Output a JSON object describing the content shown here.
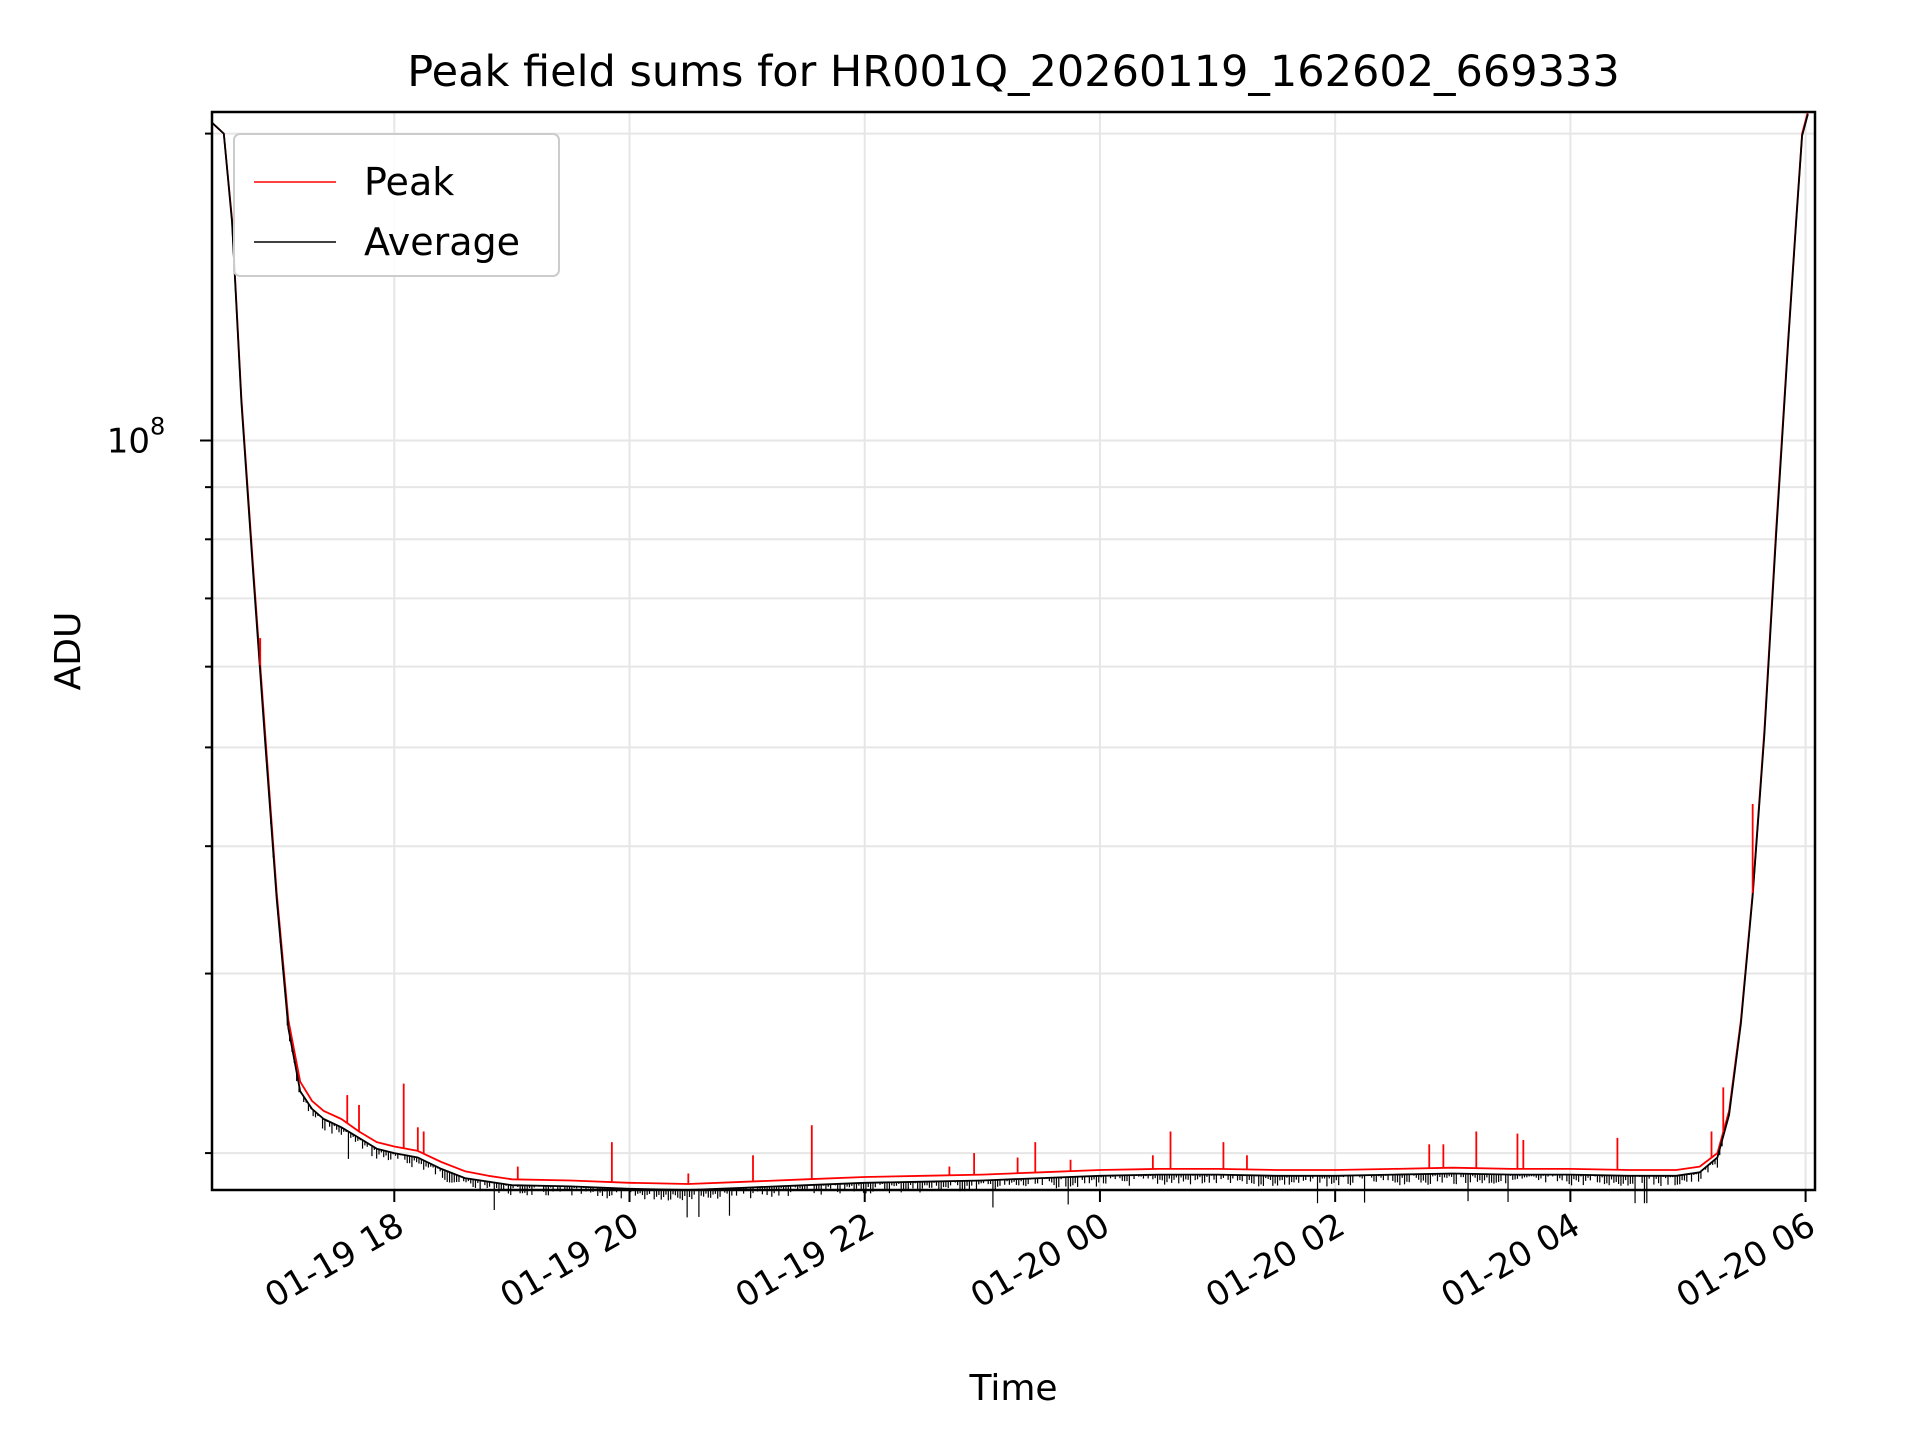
{
  "chart_data": {
    "type": "line",
    "title": "Peak field sums for HR001Q_20260119_162602_669333",
    "xlabel": "Time",
    "ylabel": "ADU",
    "yscale": "log",
    "grid": true,
    "legend_location": "upper-left",
    "colors": {
      "Peak": "#ff0000",
      "Average": "#000000"
    },
    "x_unit": "hours since 2026-01-19 00:00",
    "xlim": [
      16.45,
      30.08
    ],
    "ylim": [
      18400000,
      210000000
    ],
    "x_ticks": [
      {
        "value": 18,
        "label": "01-19 18"
      },
      {
        "value": 20,
        "label": "01-19 20"
      },
      {
        "value": 22,
        "label": "01-19 22"
      },
      {
        "value": 24,
        "label": "01-20 00"
      },
      {
        "value": 26,
        "label": "01-20 02"
      },
      {
        "value": 28,
        "label": "01-20 04"
      },
      {
        "value": 30,
        "label": "01-20 06"
      }
    ],
    "y_major_ticks": [
      {
        "value": 100000000,
        "base": "10",
        "exp": "8"
      }
    ],
    "y_minor_ticks": [
      20000000,
      30000000,
      40000000,
      50000000,
      60000000,
      70000000,
      80000000,
      90000000,
      200000000
    ],
    "series": [
      {
        "name": "Peak",
        "x": [
          16.45,
          16.55,
          16.62,
          16.7,
          16.8,
          16.9,
          17.0,
          17.1,
          17.2,
          17.3,
          17.4,
          17.55,
          17.7,
          17.85,
          18.0,
          18.2,
          18.4,
          18.6,
          18.8,
          19.0,
          19.5,
          20.0,
          20.5,
          21.0,
          21.5,
          22.0,
          22.5,
          23.0,
          23.5,
          24.0,
          24.5,
          25.0,
          25.5,
          26.0,
          26.5,
          27.0,
          27.5,
          28.0,
          28.5,
          28.9,
          29.1,
          29.25,
          29.35,
          29.45,
          29.55,
          29.65,
          29.75,
          29.85,
          29.92,
          29.97,
          30.02
        ],
        "values": [
          205000000,
          200000000,
          165000000,
          110000000,
          75000000,
          52000000,
          36000000,
          27000000,
          23500000,
          22500000,
          22000000,
          21600000,
          21000000,
          20500000,
          20300000,
          20100000,
          19600000,
          19200000,
          19000000,
          18850000,
          18800000,
          18700000,
          18650000,
          18750000,
          18850000,
          18950000,
          19000000,
          19050000,
          19150000,
          19250000,
          19300000,
          19300000,
          19250000,
          19250000,
          19300000,
          19350000,
          19300000,
          19300000,
          19250000,
          19250000,
          19400000,
          20000000,
          22000000,
          27000000,
          36000000,
          52000000,
          82000000,
          125000000,
          165000000,
          200000000,
          210000000
        ]
      },
      {
        "name": "Average",
        "x": [
          16.45,
          16.55,
          16.62,
          16.7,
          16.8,
          16.9,
          17.0,
          17.1,
          17.2,
          17.3,
          17.4,
          17.55,
          17.7,
          17.85,
          18.0,
          18.2,
          18.4,
          18.6,
          18.8,
          19.0,
          19.5,
          20.0,
          20.5,
          21.0,
          21.5,
          22.0,
          22.5,
          23.0,
          23.5,
          24.0,
          24.5,
          25.0,
          25.5,
          26.0,
          26.5,
          27.0,
          27.5,
          28.0,
          28.5,
          28.9,
          29.1,
          29.25,
          29.35,
          29.45,
          29.55,
          29.65,
          29.75,
          29.85,
          29.92,
          29.97,
          30.02
        ],
        "values": [
          205000000,
          200000000,
          164000000,
          109000000,
          74000000,
          51000000,
          35500000,
          26500000,
          23000000,
          22100000,
          21600000,
          21200000,
          20700000,
          20200000,
          20000000,
          19800000,
          19300000,
          18900000,
          18750000,
          18600000,
          18550000,
          18450000,
          18400000,
          18500000,
          18600000,
          18700000,
          18750000,
          18800000,
          18900000,
          19000000,
          19050000,
          19050000,
          19000000,
          19000000,
          19050000,
          19100000,
          19050000,
          19050000,
          19000000,
          19000000,
          19150000,
          19800000,
          21800000,
          26800000,
          35800000,
          51500000,
          81000000,
          124000000,
          164000000,
          199000000,
          209000000
        ]
      }
    ],
    "peak_spikes": [
      {
        "x": 16.86,
        "value": 64000000
      },
      {
        "x": 17.6,
        "value": 22800000
      },
      {
        "x": 17.7,
        "value": 22300000
      },
      {
        "x": 18.08,
        "value": 23400000
      },
      {
        "x": 18.2,
        "value": 21200000
      },
      {
        "x": 18.25,
        "value": 21000000
      },
      {
        "x": 19.05,
        "value": 19400000
      },
      {
        "x": 19.85,
        "value": 20500000
      },
      {
        "x": 20.5,
        "value": 19100000
      },
      {
        "x": 21.05,
        "value": 19900000
      },
      {
        "x": 21.55,
        "value": 21300000
      },
      {
        "x": 22.72,
        "value": 19400000
      },
      {
        "x": 22.93,
        "value": 20000000
      },
      {
        "x": 23.3,
        "value": 19800000
      },
      {
        "x": 23.45,
        "value": 20500000
      },
      {
        "x": 23.75,
        "value": 19700000
      },
      {
        "x": 24.45,
        "value": 19900000
      },
      {
        "x": 24.6,
        "value": 21000000
      },
      {
        "x": 25.05,
        "value": 20500000
      },
      {
        "x": 25.25,
        "value": 19900000
      },
      {
        "x": 26.8,
        "value": 20400000
      },
      {
        "x": 26.92,
        "value": 20400000
      },
      {
        "x": 27.2,
        "value": 21000000
      },
      {
        "x": 27.55,
        "value": 20900000
      },
      {
        "x": 27.6,
        "value": 20600000
      },
      {
        "x": 28.4,
        "value": 20700000
      },
      {
        "x": 29.2,
        "value": 21000000
      },
      {
        "x": 29.3,
        "value": 23200000
      },
      {
        "x": 29.55,
        "value": 44000000
      }
    ]
  }
}
